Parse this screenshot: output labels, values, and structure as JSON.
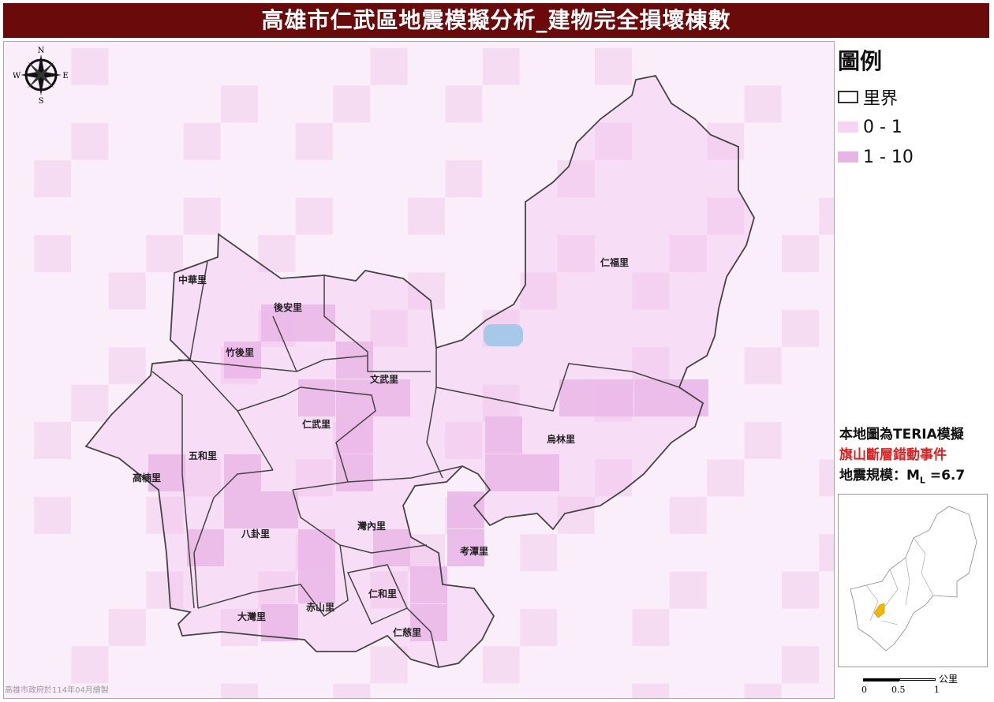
{
  "title": "高雄市仁武區地震模擬分析_建物完全損壞棟數",
  "compass": {
    "n": "N",
    "s": "S",
    "e": "E",
    "w": "W"
  },
  "credit": "高雄市政府於114年04月繪製",
  "legend": {
    "title": "圖例",
    "items": [
      {
        "label": "里界",
        "type": "outline",
        "color": "#333333"
      },
      {
        "label": "0 - 1",
        "type": "fill",
        "color": "#f9d3f5"
      },
      {
        "label": "1 - 10",
        "type": "fill",
        "color": "#e8b4e6"
      }
    ]
  },
  "note": {
    "line1": "本地圖為TERIA模擬",
    "line2": "旗山斷層錯動事件",
    "line3_prefix": "地震規模：M",
    "line3_sub": "L",
    "line3_suffix": " =6.7"
  },
  "inset": {
    "highlight_color": "#f2b705"
  },
  "scale": {
    "unit": "公里",
    "ticks": [
      "0",
      "0.5",
      "1"
    ]
  },
  "villages": [
    "中華里",
    "後安里",
    "竹後里",
    "文武里",
    "仁武里",
    "五和里",
    "高楠里",
    "八卦里",
    "灣內里",
    "考潭里",
    "赤山里",
    "仁和里",
    "大灣里",
    "仁慈里",
    "仁福里",
    "烏林里"
  ]
}
